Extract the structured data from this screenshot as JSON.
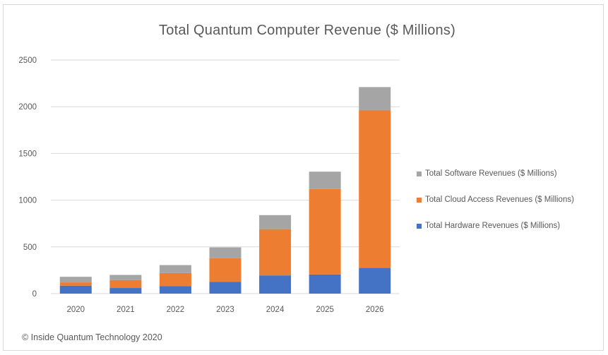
{
  "chart_data": {
    "type": "bar",
    "stacked": true,
    "title": "Total Quantum Computer Revenue ($ Millions)",
    "xlabel": "",
    "ylabel": "",
    "categories": [
      "2020",
      "2021",
      "2022",
      "2023",
      "2024",
      "2025",
      "2026"
    ],
    "ylim": [
      0,
      2500
    ],
    "yticks": [
      0,
      500,
      1000,
      1500,
      2000,
      2500
    ],
    "grid": true,
    "legend_position": "right",
    "series": [
      {
        "name": "Total Hardware Revenues ($ Millions)",
        "color": "#4472c4",
        "values": [
          85,
          60,
          80,
          125,
          195,
          205,
          275
        ]
      },
      {
        "name": "Total Cloud Access Revenues ($ Millions)",
        "color": "#ed7d31",
        "values": [
          35,
          85,
          140,
          255,
          495,
          915,
          1685
        ]
      },
      {
        "name": "Total Software Revenues ($ Millions)",
        "color": "#a5a5a5",
        "values": [
          60,
          55,
          85,
          115,
          150,
          185,
          250
        ]
      }
    ],
    "legend_order": [
      2,
      1,
      0
    ]
  },
  "footer": "© Inside Quantum Technology 2020"
}
